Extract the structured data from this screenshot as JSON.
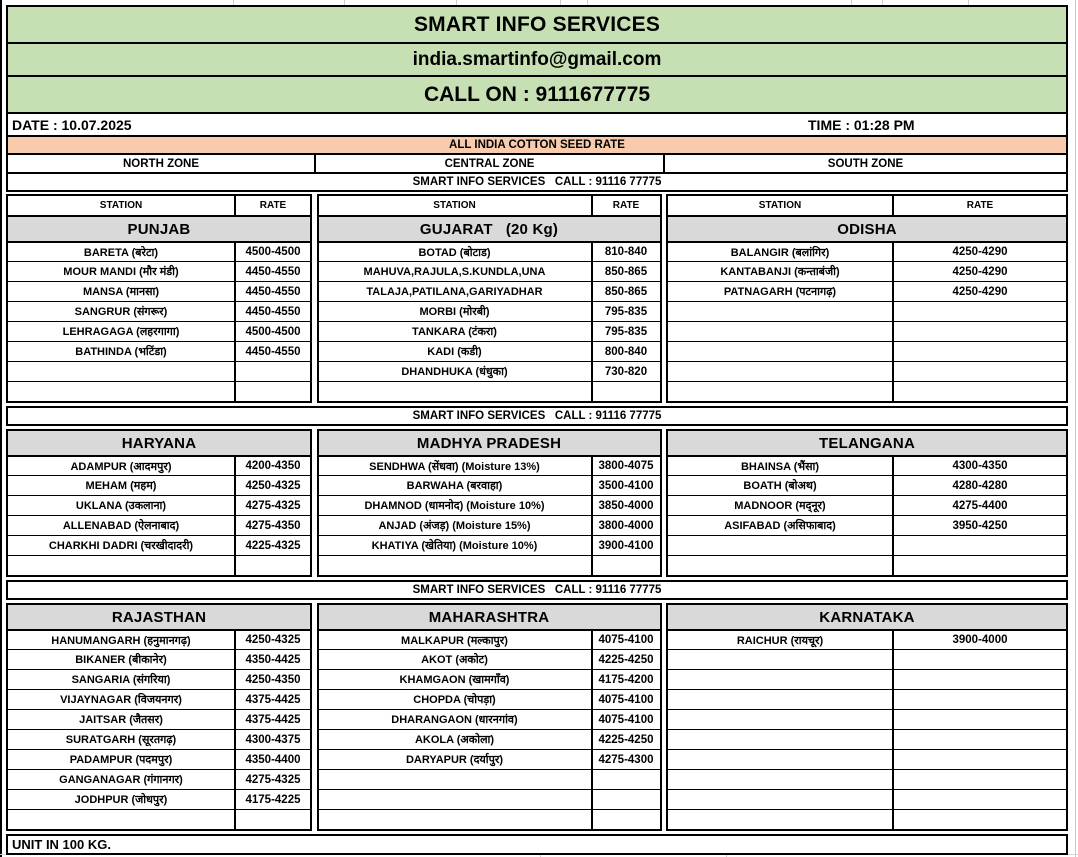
{
  "header": {
    "title": "SMART INFO SERVICES",
    "email": "india.smartinfo@gmail.com",
    "call": "CALL ON : 9111677775",
    "date": "DATE : 10.07.2025",
    "time": "TIME : 01:28 PM",
    "banner": "ALL INDIA COTTON SEED RATE",
    "zones": [
      "NORTH ZONE",
      "CENTRAL ZONE",
      "SOUTH ZONE"
    ],
    "separator": "SMART INFO SERVICES   CALL : 91116 77775",
    "station_label": "STATION",
    "rate_label": "RATE"
  },
  "footer": {
    "unit": "UNIT IN 100 KG."
  },
  "colors": {
    "green": "#c6e0b4",
    "orange": "#f8cbad",
    "gray": "#d9d9d9"
  },
  "blocks": [
    {
      "show_column_headers": true,
      "states": [
        {
          "name": "PUNJAB",
          "zone": 1,
          "rows": [
            [
              "BARETA (बरेटा)",
              "4500-4500"
            ],
            [
              "MOUR MANDI (मौर मंडी)",
              "4450-4550"
            ],
            [
              "MANSA (मानसा)",
              "4450-4550"
            ],
            [
              "SANGRUR (संगरूर)",
              "4450-4550"
            ],
            [
              "LEHRAGAGA (लहरगागा)",
              "4500-4500"
            ],
            [
              "BATHINDA (भटिंडा)",
              "4450-4550"
            ]
          ],
          "empty_rows": 2
        },
        {
          "name": "GUJARAT   (20 Kg)",
          "zone": 2,
          "rows": [
            [
              "BOTAD (बोटाड)",
              "810-840"
            ],
            [
              "MAHUVA,RAJULA,S.KUNDLA,UNA",
              "850-865"
            ],
            [
              "TALAJA,PATILANA,GARIYADHAR",
              "850-865"
            ],
            [
              "MORBI (मोरबी)",
              "795-835"
            ],
            [
              "TANKARA (टंकरा)",
              "795-835"
            ],
            [
              "KADI (कडी)",
              "800-840"
            ],
            [
              "DHANDHUKA (धंधुका)",
              "730-820"
            ]
          ],
          "empty_rows": 1
        },
        {
          "name": "ODISHA",
          "zone": 3,
          "rows": [
            [
              "BALANGIR (बलांगिर)",
              "4250-4290"
            ],
            [
              "KANTABANJI (कन्ताबंजी)",
              "4250-4290"
            ],
            [
              "PATNAGARH (पटनागढ़)",
              "4250-4290"
            ]
          ],
          "empty_rows": 5
        }
      ]
    },
    {
      "show_column_headers": false,
      "states": [
        {
          "name": "HARYANA",
          "zone": 1,
          "rows": [
            [
              "ADAMPUR (आदमपुर)",
              "4200-4350"
            ],
            [
              "MEHAM (महम)",
              "4250-4325"
            ],
            [
              "UKLANA (उकलाना)",
              "4275-4325"
            ],
            [
              "ALLENABAD (ऐलनाबाद)",
              "4275-4350"
            ],
            [
              "CHARKHI DADRI (चरखीदादरी)",
              "4225-4325"
            ]
          ],
          "empty_rows": 1
        },
        {
          "name": "MADHYA PRADESH",
          "zone": 2,
          "rows": [
            [
              "SENDHWA  (सेंधवा) (Moisture 13%)",
              "3800-4075"
            ],
            [
              "BARWAHA (बरवाहा)",
              "3500-4100"
            ],
            [
              "DHAMNOD (धामनोद) (Moisture 10%)",
              "3850-4000"
            ],
            [
              "ANJAD  (अंजड़) (Moisture 15%)",
              "3800-4000"
            ],
            [
              "KHATIYA (खेतिया) (Moisture 10%)",
              "3900-4100"
            ]
          ],
          "empty_rows": 1
        },
        {
          "name": "TELANGANA",
          "zone": 3,
          "rows": [
            [
              "BHAINSA (भैंसा)",
              "4300-4350"
            ],
            [
              "BOATH (बोअथ)",
              "4280-4280"
            ],
            [
              "MADNOOR (मद्नूर)",
              "4275-4400"
            ],
            [
              "ASIFABAD (असिफाबाद)",
              "3950-4250"
            ]
          ],
          "empty_rows": 2
        }
      ]
    },
    {
      "show_column_headers": false,
      "states": [
        {
          "name": "RAJASTHAN",
          "zone": 1,
          "rows": [
            [
              "HANUMANGARH (हनुमानगढ़)",
              "4250-4325"
            ],
            [
              "BIKANER (बीकानेर)",
              "4350-4425"
            ],
            [
              "SANGARIA (संगरिया)",
              "4250-4350"
            ],
            [
              "VIJAYNAGAR (विजयनगर)",
              "4375-4425"
            ],
            [
              "JAITSAR (जैतसर)",
              "4375-4425"
            ],
            [
              "SURATGARH (सूरतगढ़)",
              "4300-4375"
            ],
            [
              "PADAMPUR (पदमपुर)",
              "4350-4400"
            ],
            [
              "GANGANAGAR (गंगानगर)",
              "4275-4325"
            ],
            [
              "JODHPUR (जोधपुर)",
              "4175-4225"
            ]
          ],
          "empty_rows": 1
        },
        {
          "name": "MAHARASHTRA",
          "zone": 2,
          "rows": [
            [
              "MALKAPUR (मल्कापुर)",
              "4075-4100"
            ],
            [
              "AKOT (अकोट)",
              "4225-4250"
            ],
            [
              "KHAMGAON (खामगाँव)",
              "4175-4200"
            ],
            [
              "CHOPDA (चोपड़ा)",
              "4075-4100"
            ],
            [
              "DHARANGAON (धारनगांव)",
              "4075-4100"
            ],
            [
              "AKOLA (अकोला)",
              "4225-4250"
            ],
            [
              "DARYAPUR (दर्यापुर)",
              "4275-4300"
            ]
          ],
          "empty_rows": 3
        },
        {
          "name": "KARNATAKA",
          "zone": 3,
          "rows": [
            [
              "RAICHUR (रायचूर)",
              "3900-4000"
            ]
          ],
          "empty_rows": 9
        }
      ]
    }
  ]
}
